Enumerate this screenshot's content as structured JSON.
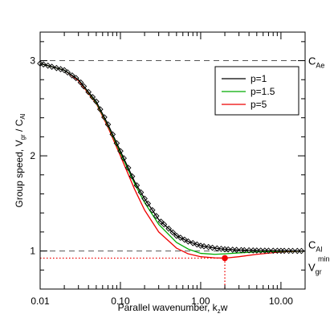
{
  "chart_data": {
    "type": "line",
    "xlabel_main": "Parallel wavenumber, k",
    "xlabel_sub": "z",
    "xlabel_tail": "w",
    "ylabel_main": "Group speed, V",
    "ylabel_sub1": "gr",
    "ylabel_mid": " / C",
    "ylabel_sub2": "Al",
    "xscale": "log",
    "xlim": [
      0.01,
      20
    ],
    "ylim": [
      0.6,
      3.3
    ],
    "x_ticks": [
      0.01,
      0.1,
      1,
      10
    ],
    "x_tick_labels": [
      "0.01",
      "0.10",
      "1.00",
      "10.00"
    ],
    "y_ticks": [
      1,
      2,
      3
    ],
    "y_tick_labels": [
      "1",
      "2",
      "3"
    ],
    "ref_lines": [
      {
        "y": 3,
        "label_main": "C",
        "label_sub": "Ae"
      },
      {
        "y": 1,
        "label_main": "C",
        "label_sub": "Al"
      }
    ],
    "vmin_label_main": "V",
    "vmin_label_sub": "gr",
    "vmin_label_sup": "min",
    "vmin_point": {
      "x": 2.0,
      "y": 0.925
    },
    "legend_position": "top-right",
    "series": [
      {
        "name": "p=1",
        "color": "#000000",
        "x": [
          0.01,
          0.02,
          0.03,
          0.05,
          0.07,
          0.1,
          0.15,
          0.2,
          0.3,
          0.5,
          0.7,
          1.0,
          1.5,
          2.0,
          3.0,
          5.0,
          10.0,
          20.0
        ],
        "y": [
          2.97,
          2.9,
          2.8,
          2.57,
          2.33,
          2.05,
          1.73,
          1.55,
          1.33,
          1.16,
          1.1,
          1.055,
          1.03,
          1.018,
          1.01,
          1.005,
          1.002,
          1.0
        ]
      },
      {
        "name": "p=1.5",
        "color": "#00aa00",
        "x": [
          0.01,
          0.02,
          0.03,
          0.05,
          0.07,
          0.1,
          0.15,
          0.2,
          0.3,
          0.5,
          0.7,
          1.0,
          1.5,
          2.0,
          3.0,
          5.0,
          10.0,
          20.0
        ],
        "y": [
          2.97,
          2.9,
          2.8,
          2.56,
          2.32,
          2.03,
          1.71,
          1.51,
          1.28,
          1.09,
          1.02,
          0.975,
          0.965,
          0.97,
          0.98,
          0.99,
          0.997,
          1.0
        ]
      },
      {
        "name": "p=5",
        "color": "#ee0000",
        "x": [
          0.01,
          0.02,
          0.03,
          0.05,
          0.07,
          0.1,
          0.15,
          0.2,
          0.3,
          0.5,
          0.7,
          1.0,
          1.5,
          2.0,
          3.0,
          5.0,
          10.0,
          20.0
        ],
        "y": [
          2.97,
          2.9,
          2.79,
          2.55,
          2.3,
          2.0,
          1.65,
          1.43,
          1.2,
          1.03,
          0.97,
          0.94,
          0.928,
          0.925,
          0.94,
          0.965,
          0.99,
          1.0
        ]
      }
    ],
    "markers": {
      "series": "p=1",
      "symbol": "diamond",
      "x": [
        0.01,
        0.011,
        0.0125,
        0.014,
        0.016,
        0.018,
        0.02,
        0.022,
        0.025,
        0.028,
        0.032,
        0.035,
        0.04,
        0.045,
        0.05,
        0.056,
        0.063,
        0.07,
        0.08,
        0.09,
        0.1,
        0.11,
        0.125,
        0.14,
        0.16,
        0.18,
        0.2,
        0.22,
        0.25,
        0.28,
        0.32,
        0.35,
        0.4,
        0.45,
        0.5,
        0.56,
        0.63,
        0.7,
        0.8,
        0.9,
        1.0,
        1.1,
        1.25,
        1.4,
        1.6,
        1.8,
        2.0,
        2.2,
        2.5,
        2.8,
        3.2,
        3.5,
        4.0,
        4.5,
        5.0,
        5.6,
        6.3,
        7.0,
        8.0,
        9.0,
        10.0,
        11.0,
        12.5,
        14.0,
        16.0,
        18.0
      ]
    }
  },
  "legend": {
    "entries": [
      {
        "name": "p=1",
        "color": "#000000"
      },
      {
        "name": "p=1.5",
        "color": "#00aa00"
      },
      {
        "name": "p=5",
        "color": "#ee0000"
      }
    ]
  },
  "colors": {
    "axis": "#000000",
    "dashed_ref": "#555555",
    "vmin_dotted": "#ee0000"
  }
}
